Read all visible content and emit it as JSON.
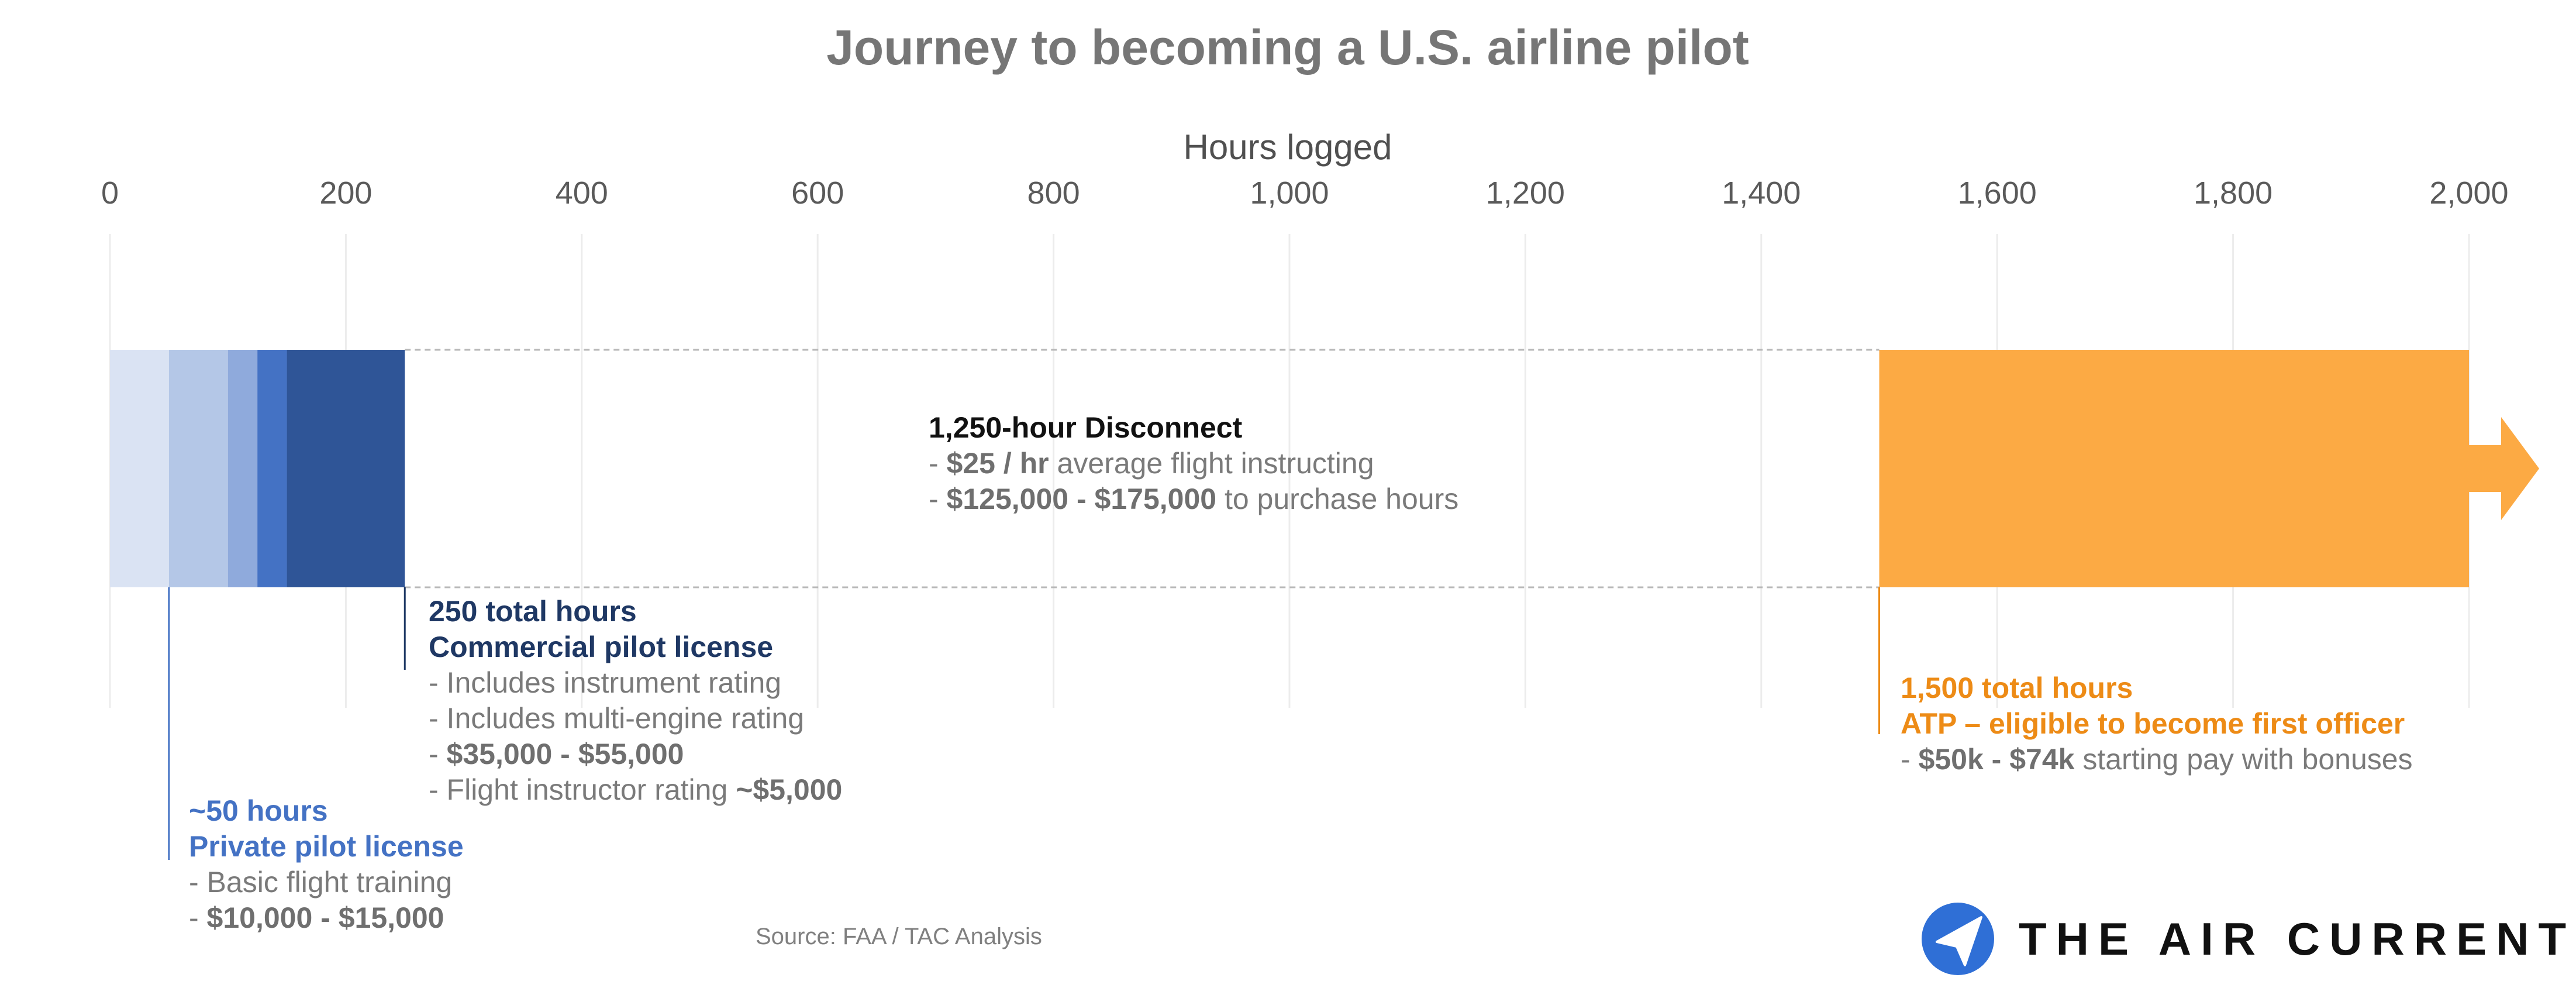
{
  "chart_data": {
    "type": "bar",
    "title": "Journey to becoming a U.S. airline pilot",
    "xlabel": "Hours logged",
    "xlim": [
      0,
      2000
    ],
    "x_ticks": [
      "0",
      "200",
      "400",
      "600",
      "800",
      "1,000",
      "1,200",
      "1,400",
      "1,600",
      "1,800",
      "2,000"
    ],
    "x_tick_values": [
      0,
      200,
      400,
      600,
      800,
      1000,
      1200,
      1400,
      1600,
      1800,
      2000
    ],
    "grid": true,
    "segments": [
      {
        "start": 0,
        "end": 50,
        "color": "#dae3f3"
      },
      {
        "start": 50,
        "end": 100,
        "color": "#b4c7e7"
      },
      {
        "start": 100,
        "end": 125,
        "color": "#8faadc"
      },
      {
        "start": 125,
        "end": 150,
        "color": "#4472c4"
      },
      {
        "start": 150,
        "end": 250,
        "color": "#2f5597"
      },
      {
        "start": 1500,
        "end": 2000,
        "color": "#fcaa44"
      }
    ],
    "gap": {
      "start": 250,
      "end": 1500
    },
    "milestones": [
      {
        "hours": 50,
        "color": "#4472c4",
        "line1": "~50 hours",
        "line2": "Private pilot license",
        "bullets": [
          {
            "bold": "",
            "text": "Basic flight training",
            "suffix": ""
          },
          {
            "bold": "$10,000 - $15,000",
            "text": "",
            "suffix": ""
          }
        ]
      },
      {
        "hours": 250,
        "color": "#1f3864",
        "line1": "250 total hours",
        "line2": "Commercial pilot license",
        "bullets": [
          {
            "bold": "",
            "text": "Includes instrument rating",
            "suffix": ""
          },
          {
            "bold": "",
            "text": "Includes multi-engine rating",
            "suffix": ""
          },
          {
            "bold": "$35,000 - $55,000",
            "text": "",
            "suffix": ""
          },
          {
            "bold": "",
            "text": "Flight instructor rating ",
            "suffix": "~$5,000"
          }
        ]
      },
      {
        "hours": 1500,
        "color": "#ed8b16",
        "line1": "1,500 total hours",
        "line2": "ATP – eligible to become first officer",
        "bullets": [
          {
            "bold": "$50k - $74k",
            "text": " starting pay with bonuses",
            "suffix": ""
          }
        ]
      }
    ],
    "disconnect": {
      "heading": "1,250-hour Disconnect",
      "bullets": [
        {
          "bold": "$25 / hr",
          "text": " average flight instructing"
        },
        {
          "bold": "$125,000 - $175,000",
          "text": " to purchase hours"
        }
      ]
    }
  },
  "source": "Source: FAA / TAC Analysis",
  "brand": {
    "name": "THE AIR CURRENT",
    "icon": "paper-plane-icon",
    "color": "#2f6fd6"
  }
}
